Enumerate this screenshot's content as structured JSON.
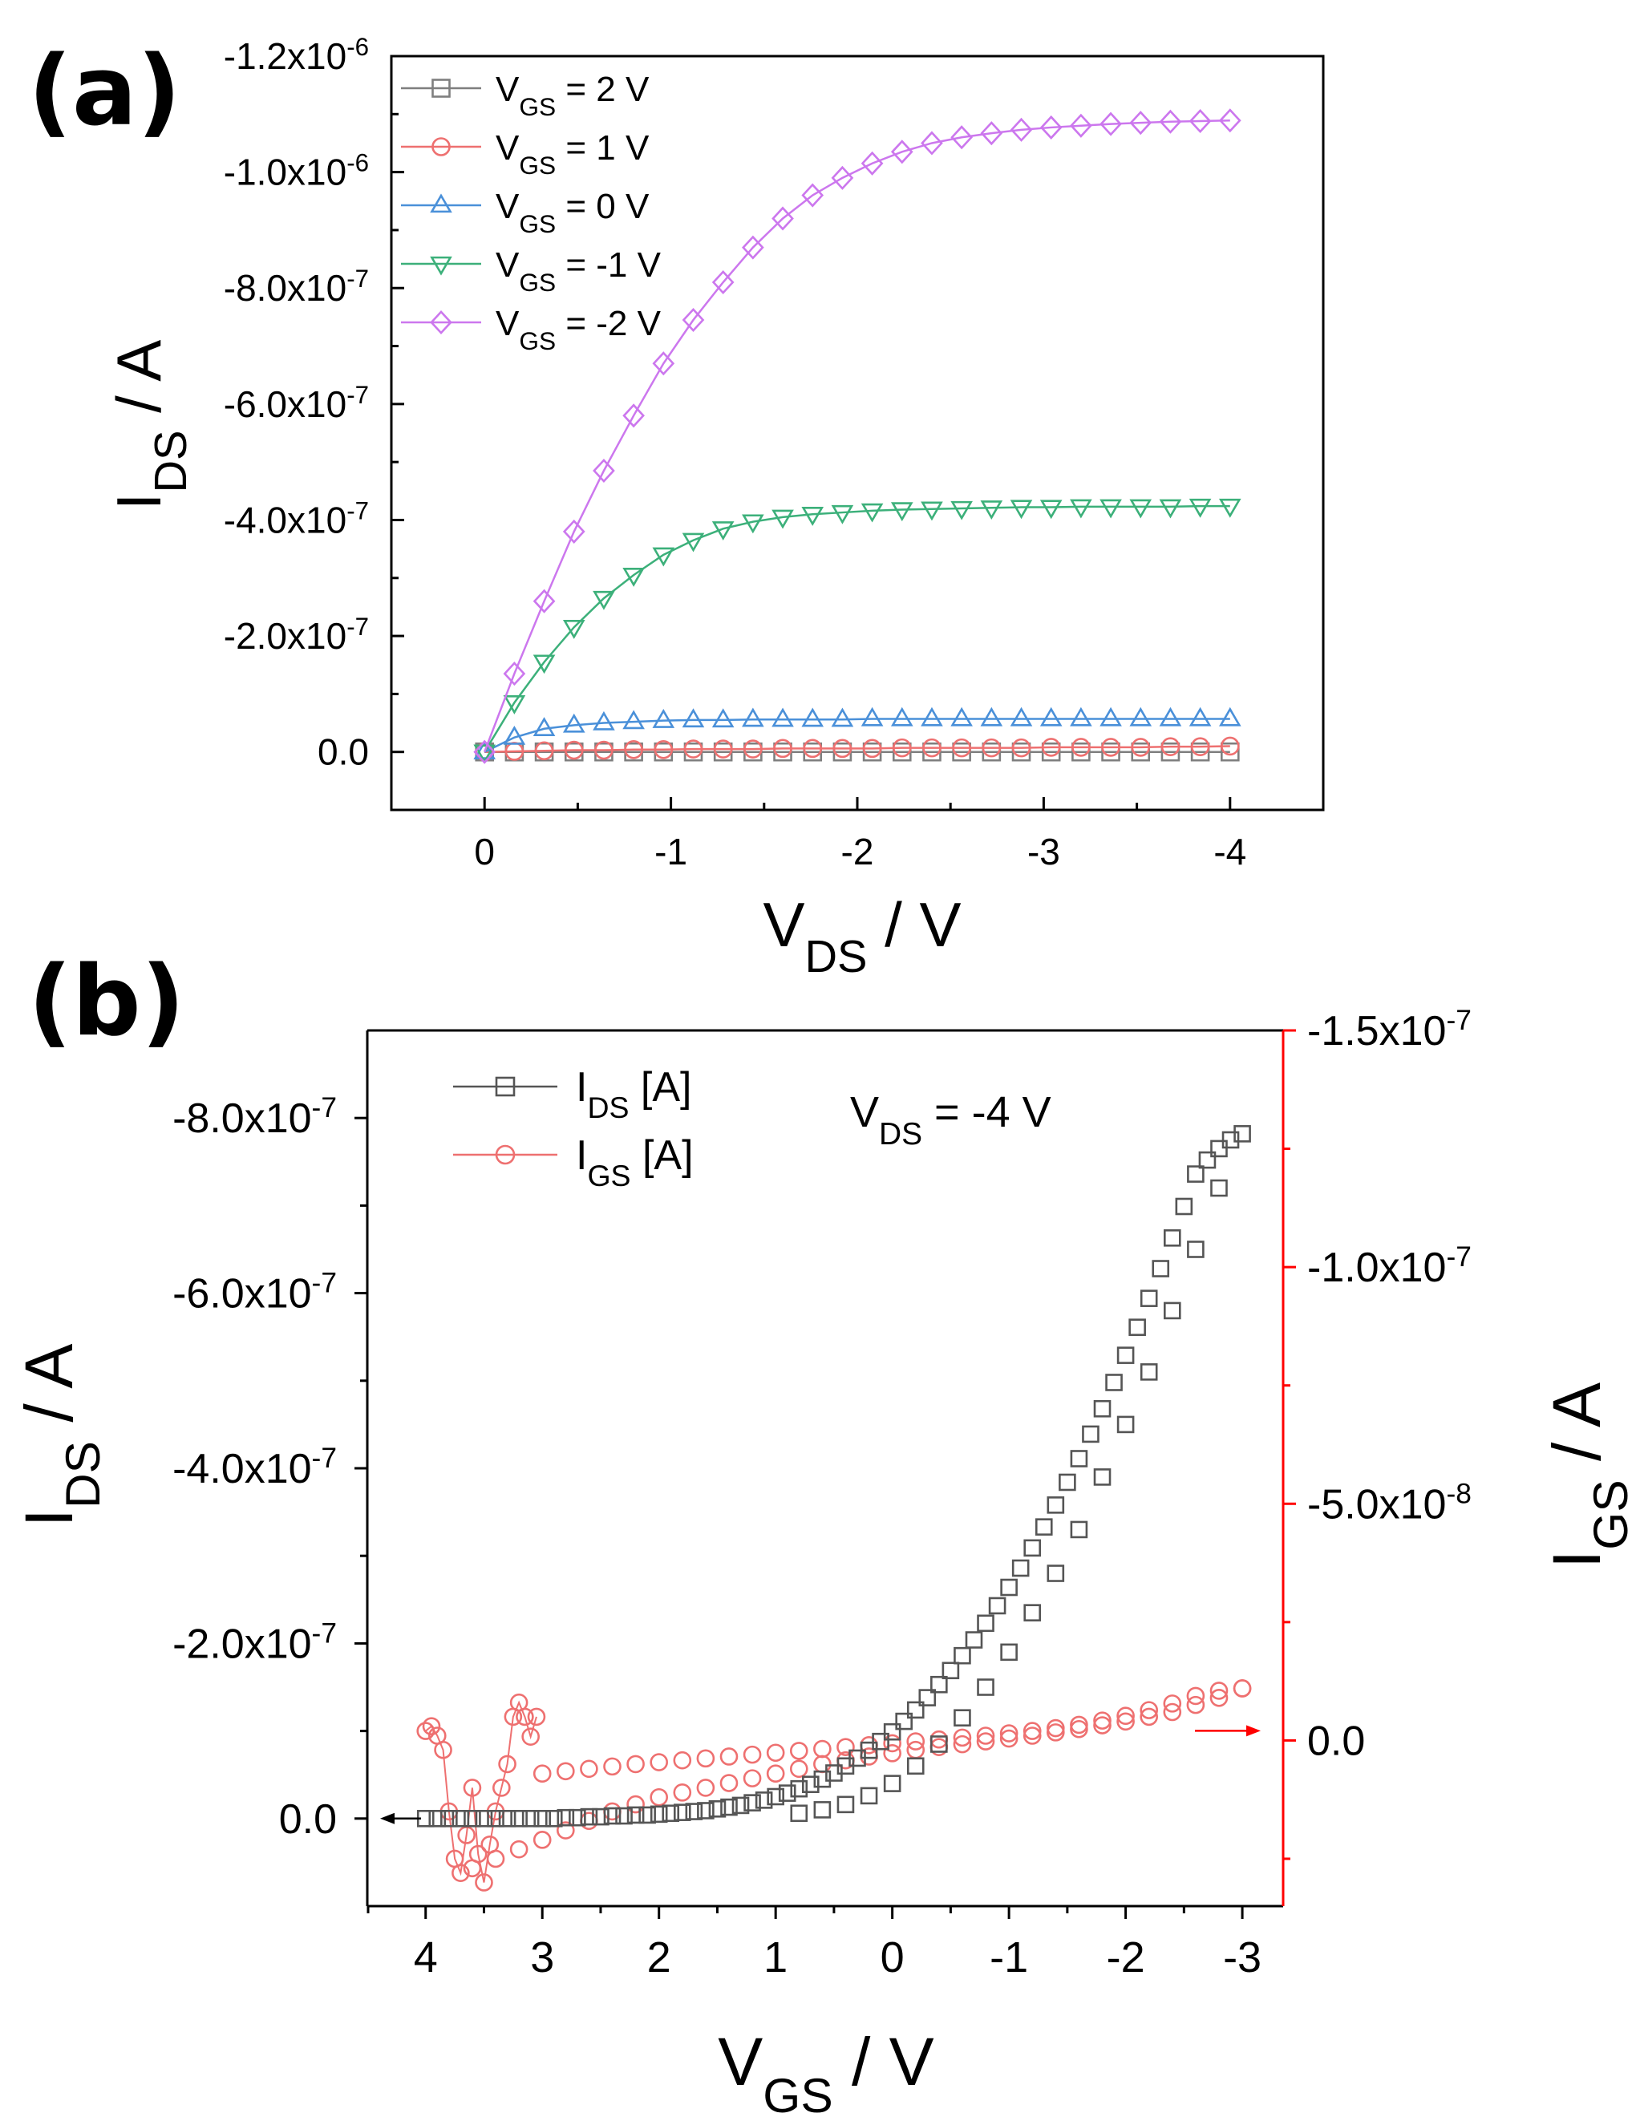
{
  "chart_data": [
    {
      "panel": "(a)",
      "type": "line",
      "xlabel": "V",
      "xlabel_sub": "DS",
      "xlabel_unit": " / V",
      "ylabel": "I",
      "ylabel_sub": "DS",
      "ylabel_unit": " / A",
      "xlim": [
        0.5,
        -4.5
      ],
      "ylim": [
        1e-07,
        -1.2e-06
      ],
      "xticks": [
        {
          "value": 0,
          "label": "0"
        },
        {
          "value": -1,
          "label": "-1"
        },
        {
          "value": -2,
          "label": "-2"
        },
        {
          "value": -3,
          "label": "-3"
        },
        {
          "value": -4,
          "label": "-4"
        }
      ],
      "yticks": [
        {
          "value": 0,
          "label": "0.0",
          "exp": ""
        },
        {
          "value": -2e-07,
          "label": "-2.0x10",
          "exp": "-7"
        },
        {
          "value": -4e-07,
          "label": "-4.0x10",
          "exp": "-7"
        },
        {
          "value": -6e-07,
          "label": "-6.0x10",
          "exp": "-7"
        },
        {
          "value": -8e-07,
          "label": "-8.0x10",
          "exp": "-7"
        },
        {
          "value": -1e-06,
          "label": "-1.0x10",
          "exp": "-6"
        },
        {
          "value": -1.2e-06,
          "label": "-1.2x10",
          "exp": "-6"
        }
      ],
      "legend_position": "top-left",
      "series": [
        {
          "name": "V",
          "sub": "GS",
          "rest": " = 2 V",
          "color": "#7f7f7f",
          "marker": "square",
          "x": [
            0,
            -0.16,
            -0.32,
            -0.48,
            -0.64,
            -0.8,
            -0.96,
            -1.12,
            -1.28,
            -1.44,
            -1.6,
            -1.76,
            -1.92,
            -2.08,
            -2.24,
            -2.4,
            -2.56,
            -2.72,
            -2.88,
            -3.04,
            -3.2,
            -3.36,
            -3.52,
            -3.68,
            -3.84,
            -4.0
          ],
          "y": [
            0,
            0,
            0,
            0,
            0,
            0,
            0,
            0,
            0,
            0,
            0,
            0,
            0,
            0,
            0,
            0,
            0,
            0,
            0,
            0,
            0,
            0,
            0,
            0,
            0,
            0
          ]
        },
        {
          "name": "V",
          "sub": "GS",
          "rest": " = 1 V",
          "color": "#ee7070",
          "marker": "circle",
          "x": [
            0,
            -0.16,
            -0.32,
            -0.48,
            -0.64,
            -0.8,
            -0.96,
            -1.12,
            -1.28,
            -1.44,
            -1.6,
            -1.76,
            -1.92,
            -2.08,
            -2.24,
            -2.4,
            -2.56,
            -2.72,
            -2.88,
            -3.04,
            -3.2,
            -3.36,
            -3.52,
            -3.68,
            -3.84,
            -4.0
          ],
          "y": [
            0,
            -1e-09,
            -2e-09,
            -3e-09,
            -3e-09,
            -4e-09,
            -4e-09,
            -5e-09,
            -5e-09,
            -5e-09,
            -6e-09,
            -6e-09,
            -6e-09,
            -6e-09,
            -7e-09,
            -7e-09,
            -7e-09,
            -7e-09,
            -7e-09,
            -8e-09,
            -8e-09,
            -8e-09,
            -8e-09,
            -9e-09,
            -9e-09,
            -1e-08
          ]
        },
        {
          "name": "V",
          "sub": "GS",
          "rest": " = 0 V",
          "color": "#4a90d9",
          "marker": "triangle-up",
          "x": [
            0,
            -0.16,
            -0.32,
            -0.48,
            -0.64,
            -0.8,
            -0.96,
            -1.12,
            -1.28,
            -1.44,
            -1.6,
            -1.76,
            -1.92,
            -2.08,
            -2.24,
            -2.4,
            -2.56,
            -2.72,
            -2.88,
            -3.04,
            -3.2,
            -3.36,
            -3.52,
            -3.68,
            -3.84,
            -4.0
          ],
          "y": [
            0,
            -2.5e-08,
            -4e-08,
            -4.6e-08,
            -5e-08,
            -5.2e-08,
            -5.4e-08,
            -5.5e-08,
            -5.5e-08,
            -5.6e-08,
            -5.6e-08,
            -5.6e-08,
            -5.6e-08,
            -5.7e-08,
            -5.7e-08,
            -5.7e-08,
            -5.7e-08,
            -5.7e-08,
            -5.7e-08,
            -5.7e-08,
            -5.7e-08,
            -5.7e-08,
            -5.7e-08,
            -5.7e-08,
            -5.7e-08,
            -5.7e-08
          ]
        },
        {
          "name": "V",
          "sub": "GS",
          "rest": " = -1 V",
          "color": "#3cb07a",
          "marker": "triangle-down",
          "x": [
            0,
            -0.16,
            -0.32,
            -0.48,
            -0.64,
            -0.8,
            -0.96,
            -1.12,
            -1.28,
            -1.44,
            -1.6,
            -1.76,
            -1.92,
            -2.08,
            -2.24,
            -2.4,
            -2.56,
            -2.72,
            -2.88,
            -3.04,
            -3.2,
            -3.36,
            -3.52,
            -3.68,
            -3.84,
            -4.0
          ],
          "y": [
            0,
            -8.5e-08,
            -1.55e-07,
            -2.15e-07,
            -2.65e-07,
            -3.05e-07,
            -3.4e-07,
            -3.65e-07,
            -3.85e-07,
            -3.97e-07,
            -4.05e-07,
            -4.1e-07,
            -4.13e-07,
            -4.16e-07,
            -4.18e-07,
            -4.19e-07,
            -4.2e-07,
            -4.21e-07,
            -4.22e-07,
            -4.22e-07,
            -4.23e-07,
            -4.23e-07,
            -4.23e-07,
            -4.23e-07,
            -4.24e-07,
            -4.24e-07
          ]
        },
        {
          "name": "V",
          "sub": "GS",
          "rest": " = -2 V",
          "color": "#cc77ee",
          "marker": "diamond",
          "x": [
            0,
            -0.16,
            -0.32,
            -0.48,
            -0.64,
            -0.8,
            -0.96,
            -1.12,
            -1.28,
            -1.44,
            -1.6,
            -1.76,
            -1.92,
            -2.08,
            -2.24,
            -2.4,
            -2.56,
            -2.72,
            -2.88,
            -3.04,
            -3.2,
            -3.36,
            -3.52,
            -3.68,
            -3.84,
            -4.0
          ],
          "y": [
            0,
            -1.35e-07,
            -2.6e-07,
            -3.8e-07,
            -4.85e-07,
            -5.8e-07,
            -6.7e-07,
            -7.45e-07,
            -8.1e-07,
            -8.7e-07,
            -9.2e-07,
            -9.6e-07,
            -9.9e-07,
            -1.015e-06,
            -1.035e-06,
            -1.05e-06,
            -1.06e-06,
            -1.067e-06,
            -1.073e-06,
            -1.077e-06,
            -1.08e-06,
            -1.083e-06,
            -1.085e-06,
            -1.087e-06,
            -1.088e-06,
            -1.089e-06
          ]
        }
      ]
    },
    {
      "panel": "(b)",
      "type": "scatter",
      "xlabel": "V",
      "xlabel_sub": "GS",
      "xlabel_unit": " / V",
      "ylabel": "I",
      "ylabel_sub": "DS",
      "ylabel_unit": " / A",
      "y2label": "I",
      "y2label_sub": "GS",
      "y2label_unit": " / A",
      "annotation": {
        "main": "V",
        "sub": "DS",
        "rest": " = -4 V"
      },
      "xlim": [
        4.5,
        -3.35
      ],
      "ylim": [
        1e-07,
        -9e-07
      ],
      "y2lim": [
        3.5e-08,
        -1.5e-07
      ],
      "xticks": [
        {
          "value": 4,
          "label": "4"
        },
        {
          "value": 3,
          "label": "3"
        },
        {
          "value": 2,
          "label": "2"
        },
        {
          "value": 1,
          "label": "1"
        },
        {
          "value": 0,
          "label": "0"
        },
        {
          "value": -1,
          "label": "-1"
        },
        {
          "value": -2,
          "label": "-2"
        },
        {
          "value": -3,
          "label": "-3"
        }
      ],
      "yticks": [
        {
          "value": 0,
          "label": "0.0",
          "exp": ""
        },
        {
          "value": -2e-07,
          "label": "-2.0x10",
          "exp": "-7"
        },
        {
          "value": -4e-07,
          "label": "-4.0x10",
          "exp": "-7"
        },
        {
          "value": -6e-07,
          "label": "-6.0x10",
          "exp": "-7"
        },
        {
          "value": -8e-07,
          "label": "-8.0x10",
          "exp": "-7"
        }
      ],
      "y2ticks": [
        {
          "value": 0,
          "label": "0.0",
          "exp": ""
        },
        {
          "value": -5e-08,
          "label": "-5.0x10",
          "exp": "-8"
        },
        {
          "value": -1e-07,
          "label": "-1.0x10",
          "exp": "-7"
        },
        {
          "value": -1.5e-07,
          "label": "-1.5x10",
          "exp": "-7"
        }
      ],
      "axis2_color": "#ff0000",
      "legend_position": "top-left",
      "series": [
        {
          "name": "I",
          "sub": "DS",
          "rest": " [A]",
          "color": "#555555",
          "marker": "square",
          "axis": "left"
        },
        {
          "name": "I",
          "sub": "GS",
          "rest": " [A]",
          "color": "#ee7070",
          "marker": "circle",
          "axis": "right"
        }
      ],
      "ids_forward": {
        "x": [
          4.0,
          3.9,
          3.8,
          3.7,
          3.6,
          3.5,
          3.4,
          3.3,
          3.2,
          3.1,
          3.0,
          2.9,
          2.8,
          2.7,
          2.6,
          2.5,
          2.4,
          2.3,
          2.2,
          2.1,
          2.0,
          1.9,
          1.8,
          1.7,
          1.6,
          1.5,
          1.4,
          1.3,
          1.2,
          1.1,
          1.0,
          0.9,
          0.8,
          0.7,
          0.6,
          0.5,
          0.4,
          0.3,
          0.2,
          0.1,
          0.0,
          -0.1,
          -0.2,
          -0.3,
          -0.4,
          -0.5,
          -0.6,
          -0.7,
          -0.8,
          -0.9,
          -1.0,
          -1.1,
          -1.2,
          -1.3,
          -1.4,
          -1.5,
          -1.6,
          -1.7,
          -1.8,
          -1.9,
          -2.0,
          -2.1,
          -2.2,
          -2.3,
          -2.4,
          -2.5,
          -2.6,
          -2.7,
          -2.8,
          -2.9,
          -3.0
        ],
        "y": [
          0,
          0,
          0,
          0,
          0,
          0,
          0,
          0,
          0,
          0,
          0,
          0,
          -1e-09,
          -1e-09,
          -2e-09,
          -2e-09,
          -3e-09,
          -3e-09,
          -4e-09,
          -4e-09,
          -5e-09,
          -6e-09,
          -7e-09,
          -8e-09,
          -9e-09,
          -1.1e-08,
          -1.3e-08,
          -1.5e-08,
          -1.8e-08,
          -2.1e-08,
          -2.5e-08,
          -2.9e-08,
          -3.4e-08,
          -3.9e-08,
          -4.5e-08,
          -5.2e-08,
          -6e-08,
          -6.9e-08,
          -7.8e-08,
          -8.8e-08,
          -9.9e-08,
          -1.11e-07,
          -1.24e-07,
          -1.38e-07,
          -1.53e-07,
          -1.69e-07,
          -1.86e-07,
          -2.04e-07,
          -2.23e-07,
          -2.43e-07,
          -2.64e-07,
          -2.86e-07,
          -3.09e-07,
          -3.33e-07,
          -3.58e-07,
          -3.84e-07,
          -4.11e-07,
          -4.39e-07,
          -4.68e-07,
          -4.98e-07,
          -5.29e-07,
          -5.61e-07,
          -5.94e-07,
          -6.28e-07,
          -6.63e-07,
          -6.99e-07,
          -7.36e-07,
          -7.52e-07,
          -7.65e-07,
          -7.75e-07,
          -7.82e-07
        ]
      },
      "ids_reverse": {
        "x": [
          -2.8,
          -2.6,
          -2.4,
          -2.2,
          -2.0,
          -1.8,
          -1.6,
          -1.4,
          -1.2,
          -1.0,
          -0.8,
          -0.6,
          -0.4,
          -0.2,
          0.0,
          0.2,
          0.4,
          0.6,
          0.8
        ],
        "y": [
          -7.2e-07,
          -6.5e-07,
          -5.8e-07,
          -5.1e-07,
          -4.5e-07,
          -3.9e-07,
          -3.3e-07,
          -2.8e-07,
          -2.35e-07,
          -1.9e-07,
          -1.5e-07,
          -1.15e-07,
          -8.5e-08,
          -6e-08,
          -4e-08,
          -2.6e-08,
          -1.6e-08,
          -1e-08,
          -6e-09
        ]
      },
      "igs_forward": {
        "x": [
          3.0,
          2.8,
          2.6,
          2.4,
          2.2,
          2.0,
          1.8,
          1.6,
          1.4,
          1.2,
          1.0,
          0.8,
          0.6,
          0.4,
          0.2,
          0.0,
          -0.2,
          -0.4,
          -0.6,
          -0.8,
          -1.0,
          -1.2,
          -1.4,
          -1.6,
          -1.8,
          -2.0,
          -2.2,
          -2.4,
          -2.6,
          -2.8,
          -3.0
        ],
        "y": [
          7e-09,
          6.5e-09,
          6e-09,
          5.5e-09,
          5e-09,
          4.6e-09,
          4.2e-09,
          3.8e-09,
          3.4e-09,
          3e-09,
          2.6e-09,
          2.2e-09,
          1.8e-09,
          1.4e-09,
          1e-09,
          6e-10,
          2e-10,
          -2e-10,
          -6e-10,
          -1e-09,
          -1.5e-09,
          -2e-09,
          -2.6e-09,
          -3.3e-09,
          -4.2e-09,
          -5.2e-09,
          -6.4e-09,
          -7.8e-09,
          -9.4e-09,
          -1.05e-08,
          -1.1e-08
        ]
      },
      "igs_reverse": {
        "x": [
          -3.0,
          -2.8,
          -2.6,
          -2.4,
          -2.2,
          -2.0,
          -1.8,
          -1.6,
          -1.4,
          -1.2,
          -1.0,
          -0.8,
          -0.6,
          -0.4,
          -0.2,
          0.0,
          0.2,
          0.4,
          0.6,
          0.8,
          1.0,
          1.2,
          1.4,
          1.6,
          1.8,
          2.0,
          2.2,
          2.4,
          2.6,
          2.8,
          3.0,
          3.2,
          3.4,
          3.6
        ],
        "y": [
          -1.1e-08,
          -9e-09,
          -7.5e-09,
          -6e-09,
          -5e-09,
          -4e-09,
          -3.2e-09,
          -2.4e-09,
          -1.7e-09,
          -1e-09,
          -4e-10,
          2e-10,
          8e-10,
          1.4e-09,
          2e-09,
          2.7e-09,
          3.4e-09,
          4.2e-09,
          5e-09,
          6e-09,
          7e-09,
          8e-09,
          9e-09,
          1e-08,
          1.1e-08,
          1.2e-08,
          1.35e-08,
          1.5e-08,
          1.7e-08,
          1.9e-08,
          2.1e-08,
          2.3e-08,
          2.5e-08,
          2.7e-08
        ]
      },
      "igs_start": {
        "x": [
          4.0,
          3.95,
          3.9,
          3.85,
          3.8,
          3.75,
          3.7,
          3.65,
          3.6,
          3.55,
          3.5,
          3.45,
          3.4,
          3.35,
          3.3,
          3.25,
          3.2,
          3.15,
          3.1,
          3.05
        ],
        "y": [
          -2e-09,
          -3e-09,
          -1e-09,
          2e-09,
          1.5e-08,
          2.5e-08,
          2.8e-08,
          2e-08,
          1e-08,
          2.4e-08,
          3e-08,
          2.2e-08,
          1.5e-08,
          1e-08,
          5e-09,
          -5e-09,
          -8e-09,
          -5e-09,
          -8e-10,
          -5e-09
        ]
      }
    }
  ]
}
